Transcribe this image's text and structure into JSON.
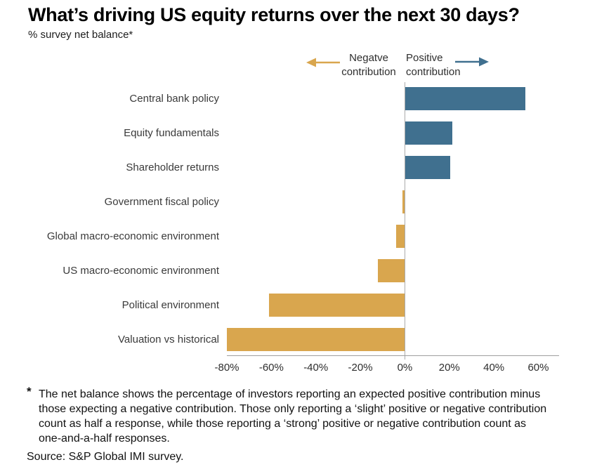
{
  "header": {
    "title": "What’s driving US equity returns over the next 30 days?",
    "subtitle": "% survey net balance*"
  },
  "legend": {
    "negative": {
      "line1": "Negatve",
      "line2": "contribution"
    },
    "positive": {
      "line1": "Positive",
      "line2": "contribution"
    }
  },
  "chart_data": {
    "type": "bar",
    "orientation": "horizontal",
    "title": "What’s driving US equity returns over the next 30 days?",
    "xlabel": "% survey net balance",
    "categories": [
      "Central bank policy",
      "Equity fundamentals",
      "Shareholder returns",
      "Government fiscal policy",
      "Global macro-economic environment",
      "US macro-economic environment",
      "Political environment",
      "Valuation vs historical"
    ],
    "values": [
      54,
      21,
      20,
      -1,
      -4,
      -12,
      -61,
      -80
    ],
    "xlim": [
      -80,
      69
    ],
    "xticks": [
      -80,
      -60,
      -40,
      -20,
      0,
      20,
      40,
      60
    ],
    "xtick_labels": [
      "-80%",
      "-60%",
      "-40%",
      "-20%",
      "0%",
      "20%",
      "40%",
      "60%"
    ],
    "grid": false,
    "legend_position": "top-right",
    "positive_color": "#40708f",
    "negative_color": "#d9a64e",
    "axis_color": "#9e9e9e"
  },
  "footnote": {
    "marker": "*",
    "lines": [
      "The net balance shows the percentage of investors reporting an expected positive contribution minus",
      "those expecting a negative contribution. Those only reporting a ‘slight’ positive or negative contribution",
      "count as half a response, while those reporting a ‘strong’ positive or negative contribution count as",
      "one-and-a-half responses."
    ]
  },
  "source": "Source: S&P Global IMI survey."
}
